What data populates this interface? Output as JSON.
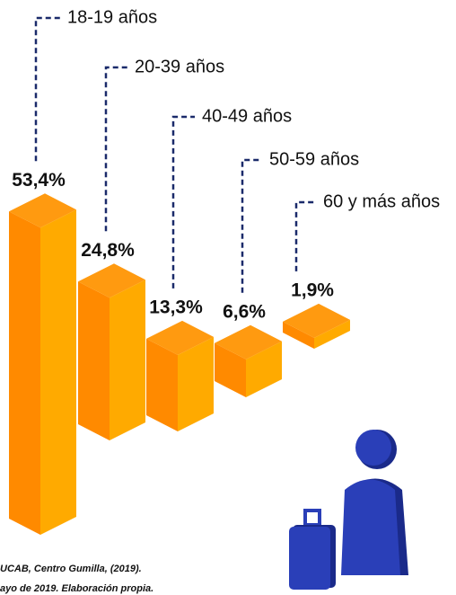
{
  "chart_data": {
    "type": "bar3d",
    "categories": [
      "18-19 años",
      "20-39 años",
      "40-49 años",
      "50-59 años",
      "60 y más años"
    ],
    "values": [
      53.4,
      24.8,
      13.3,
      6.6,
      1.9
    ],
    "value_labels": [
      "53,4%",
      "24,8%",
      "13,3%",
      "6,6%",
      "1,9%"
    ],
    "colors": {
      "left": "#ff8a00",
      "right": "#ffaa00",
      "top": "#ff9a10"
    },
    "source": [
      "UCAB, Centro Gumilla, (2019).",
      "ayo de 2019. Elaboración propia."
    ]
  }
}
